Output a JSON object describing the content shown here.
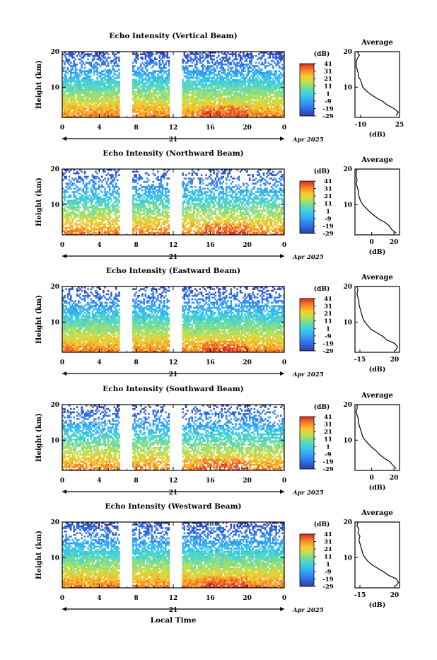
{
  "figure": {
    "xlabel": "Local Time",
    "date_label": "Apr 2025",
    "day_label": "21"
  },
  "chart_data": [
    {
      "type": "heatmap",
      "title": "Echo Intensity (Vertical Beam)",
      "ylabel": "Height (km)",
      "x_ticks": [
        "0",
        "4",
        "8",
        "12",
        "16",
        "20",
        "0"
      ],
      "y_ticks": [
        "20",
        "10"
      ],
      "xlim": [
        0,
        24
      ],
      "ylim": [
        1.5,
        20
      ],
      "colorbar": {
        "unit": "(dB)",
        "ticks": [
          "41",
          "31",
          "21",
          "11",
          "1",
          "-9",
          "-19",
          "-29"
        ],
        "range": [
          -29,
          41
        ]
      },
      "profile": {
        "title": "Average",
        "xlabel": "(dB)",
        "x_ticks": [
          "-10",
          "25"
        ],
        "xlim": [
          -15,
          25
        ],
        "y_ticks": [
          "20",
          "10"
        ],
        "heights": [
          2,
          3,
          4,
          5,
          6,
          7,
          8,
          9,
          10,
          11,
          12,
          13,
          14,
          15,
          16,
          17,
          18,
          19,
          20
        ],
        "values": [
          22,
          24,
          20,
          14,
          10,
          4,
          -1,
          -5,
          -8,
          -9,
          -10,
          -12,
          -12,
          -13,
          -14,
          -14,
          -13,
          -11,
          -13
        ]
      }
    },
    {
      "type": "heatmap",
      "title": "Echo Intensity (Northward Beam)",
      "ylabel": "Height (km)",
      "x_ticks": [
        "0",
        "4",
        "8",
        "12",
        "16",
        "20",
        "0"
      ],
      "y_ticks": [
        "20",
        "10"
      ],
      "xlim": [
        0,
        24
      ],
      "ylim": [
        1.5,
        20
      ],
      "colorbar": {
        "unit": "(dB)",
        "ticks": [
          "41",
          "31",
          "21",
          "11",
          "1",
          "-9",
          "-19",
          "-29"
        ],
        "range": [
          -29,
          41
        ]
      },
      "profile": {
        "title": "Average",
        "xlabel": "(dB)",
        "x_ticks": [
          "0",
          "20"
        ],
        "xlim": [
          -15,
          25
        ],
        "y_ticks": [
          "20",
          "10"
        ],
        "heights": [
          2,
          3,
          4,
          5,
          6,
          7,
          8,
          9,
          10,
          11,
          12,
          13,
          14,
          15,
          16,
          17,
          18,
          19,
          20
        ],
        "values": [
          22,
          18,
          16,
          12,
          6,
          2,
          -2,
          -5,
          -8,
          -10,
          -11,
          -12,
          -12,
          -13,
          -14,
          -13,
          -14,
          -14,
          -13
        ]
      }
    },
    {
      "type": "heatmap",
      "title": "Echo Intensity (Eastward Beam)",
      "ylabel": "Height (km)",
      "x_ticks": [
        "0",
        "4",
        "8",
        "12",
        "16",
        "20",
        "0"
      ],
      "y_ticks": [
        "20",
        "10"
      ],
      "xlim": [
        0,
        24
      ],
      "ylim": [
        1.5,
        20
      ],
      "colorbar": {
        "unit": "(dB)",
        "ticks": [
          "41",
          "31",
          "21",
          "11",
          "1",
          "-9",
          "-19",
          "-29"
        ],
        "range": [
          -29,
          41
        ]
      },
      "profile": {
        "title": "Average",
        "xlabel": "(dB)",
        "x_ticks": [
          "-15",
          "20"
        ],
        "xlim": [
          -20,
          25
        ],
        "y_ticks": [
          "20",
          "10"
        ],
        "heights": [
          2,
          3,
          4,
          5,
          6,
          7,
          8,
          9,
          10,
          11,
          12,
          13,
          14,
          15,
          16,
          17,
          18,
          19,
          20
        ],
        "values": [
          21,
          23,
          20,
          12,
          8,
          2,
          -4,
          -7,
          -10,
          -12,
          -13,
          -14,
          -15,
          -16,
          -16,
          -17,
          -18,
          -17,
          -18
        ]
      }
    },
    {
      "type": "heatmap",
      "title": "Echo Intensity (Southward Beam)",
      "ylabel": "Height (km)",
      "x_ticks": [
        "0",
        "4",
        "8",
        "12",
        "16",
        "20",
        "0"
      ],
      "y_ticks": [
        "20",
        "10"
      ],
      "xlim": [
        0,
        24
      ],
      "ylim": [
        1.5,
        20
      ],
      "colorbar": {
        "unit": "(dB)",
        "ticks": [
          "41",
          "31",
          "21",
          "11",
          "1",
          "-9",
          "-19",
          "-29"
        ],
        "range": [
          -29,
          41
        ]
      },
      "profile": {
        "title": "Average",
        "xlabel": "(dB)",
        "x_ticks": [
          "0",
          "20"
        ],
        "xlim": [
          -15,
          25
        ],
        "y_ticks": [
          "20",
          "10"
        ],
        "heights": [
          2,
          3,
          4,
          5,
          6,
          7,
          8,
          9,
          10,
          11,
          12,
          13,
          14,
          15,
          16,
          17,
          18,
          19,
          20
        ],
        "values": [
          22,
          19,
          16,
          11,
          7,
          4,
          0,
          -3,
          -6,
          -8,
          -9,
          -10,
          -11,
          -12,
          -12,
          -13,
          -14,
          -13,
          -13
        ]
      }
    },
    {
      "type": "heatmap",
      "title": "Echo Intensity (Westward Beam)",
      "ylabel": "Height (km)",
      "x_ticks": [
        "0",
        "4",
        "8",
        "12",
        "16",
        "20",
        "0"
      ],
      "y_ticks": [
        "20",
        "10"
      ],
      "xlim": [
        0,
        24
      ],
      "ylim": [
        1.5,
        20
      ],
      "colorbar": {
        "unit": "(dB)",
        "ticks": [
          "41",
          "31",
          "21",
          "11",
          "1",
          "-9",
          "-19",
          "-29"
        ],
        "range": [
          -29,
          41
        ]
      },
      "profile": {
        "title": "Average",
        "xlabel": "(dB)",
        "x_ticks": [
          "-15",
          "20"
        ],
        "xlim": [
          -20,
          25
        ],
        "y_ticks": [
          "20",
          "10"
        ],
        "heights": [
          2,
          3,
          4,
          5,
          6,
          7,
          8,
          9,
          10,
          11,
          12,
          13,
          14,
          15,
          16,
          17,
          18,
          19,
          20
        ],
        "values": [
          21,
          24,
          22,
          14,
          9,
          3,
          -3,
          -7,
          -10,
          -12,
          -13,
          -14,
          -15,
          -16,
          -15,
          -17,
          -16,
          -18,
          -17
        ]
      }
    }
  ]
}
